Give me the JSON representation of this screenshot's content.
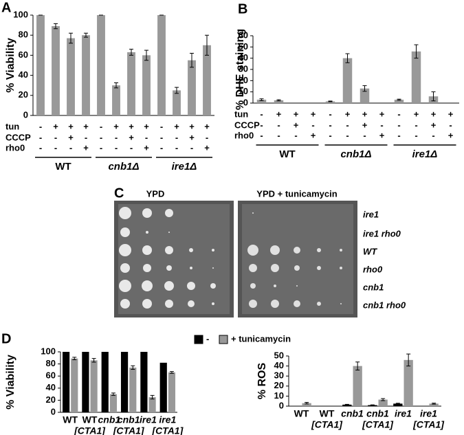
{
  "chart_data": [
    {
      "type": "bar",
      "panel": "A",
      "ylabel": "% Viability",
      "color": "#999999",
      "values": [
        100,
        89,
        77,
        80,
        100,
        30,
        63,
        60,
        100,
        25,
        55,
        70
      ],
      "errors": [
        0,
        2.5,
        5,
        2,
        0,
        2.5,
        3,
        5,
        0,
        3,
        7,
        10
      ],
      "ylim": [
        0,
        100
      ],
      "yticks": [
        0,
        20,
        40,
        60,
        80,
        100
      ],
      "treatments": [
        {
          "name": "tun",
          "signs": [
            "-",
            "+",
            "+",
            "+",
            "-",
            "+",
            "+",
            "+",
            "-",
            "+",
            "+",
            "+"
          ]
        },
        {
          "name": "CCCP",
          "signs": [
            "-",
            "-",
            "+",
            "-",
            "-",
            "-",
            "+",
            "-",
            "-",
            "-",
            "+",
            "-"
          ]
        },
        {
          "name": "rho0",
          "signs": [
            "-",
            "-",
            "-",
            "+",
            "-",
            "-",
            "-",
            "+",
            "-",
            "-",
            "-",
            "+"
          ]
        }
      ],
      "groups": [
        "WT",
        "cnb1Δ",
        "ire1Δ"
      ]
    },
    {
      "type": "bar",
      "panel": "B",
      "ylabel": "% DHE staining",
      "color": "#999999",
      "values": [
        3,
        2.5,
        0,
        0,
        1.5,
        40,
        13,
        0,
        3,
        46,
        6,
        0
      ],
      "errors": [
        0.8,
        0.5,
        0,
        0,
        0.3,
        4,
        2.5,
        0,
        0.5,
        6,
        4,
        0
      ],
      "ylim": [
        0,
        60
      ],
      "yticks": [
        0,
        10,
        20,
        30,
        40,
        50,
        60
      ],
      "treatments": [
        {
          "name": "tun",
          "signs": [
            "-",
            "+",
            "+",
            "+",
            "-",
            "+",
            "+",
            "+",
            "-",
            "+",
            "+",
            "+"
          ]
        },
        {
          "name": "CCCP",
          "signs": [
            "-",
            "-",
            "+",
            "-",
            "-",
            "-",
            "+",
            "-",
            "-",
            "-",
            "+",
            "-"
          ]
        },
        {
          "name": "rho0",
          "signs": [
            "-",
            "-",
            "-",
            "+",
            "-",
            "-",
            "-",
            "+",
            "-",
            "-",
            "-",
            "+"
          ]
        }
      ],
      "groups": [
        "WT",
        "cnb1Δ",
        "ire1Δ"
      ]
    },
    {
      "type": "grouped_bar",
      "panel": "D",
      "ylabel": "% Viability",
      "categories": [
        "WT",
        "WT",
        "cnb1",
        "cnb1",
        "ire1",
        "ire1"
      ],
      "category_sublabels": [
        null,
        "[CTA1]",
        null,
        "[CTA1]",
        null,
        "[CTA1]"
      ],
      "series": [
        {
          "name": "-",
          "color": "#000000",
          "values": [
            100,
            100,
            100,
            100,
            100,
            82
          ],
          "errors": [
            0,
            0,
            0,
            0,
            0,
            0
          ]
        },
        {
          "name": "+ tunicamycin",
          "color": "#999999",
          "values": [
            89,
            86,
            30,
            74,
            25,
            66
          ],
          "errors": [
            2,
            3,
            2,
            3,
            3,
            1.5
          ]
        }
      ],
      "ylim": [
        0,
        100
      ],
      "yticks": [
        0,
        20,
        40,
        60,
        80,
        100
      ]
    },
    {
      "type": "grouped_bar",
      "ylabel": "% ROS",
      "categories": [
        "WT",
        "WT",
        "cnb1",
        "cnb1",
        "ire1",
        "ire1"
      ],
      "category_sublabels": [
        null,
        "[CTA1]",
        null,
        "[CTA1]",
        null,
        "[CTA1]"
      ],
      "series": [
        {
          "name": "-",
          "color": "#000000",
          "values": [
            0,
            0,
            1.5,
            1,
            2.5,
            0
          ],
          "errors": [
            0,
            0,
            0.3,
            0.3,
            0.4,
            0
          ]
        },
        {
          "name": "+ tunicamycin",
          "color": "#999999",
          "values": [
            3,
            0,
            40,
            6.5,
            46,
            2.5
          ],
          "errors": [
            0.8,
            0,
            4,
            1,
            6,
            0.5
          ]
        }
      ],
      "ylim": [
        0,
        50
      ],
      "yticks": [
        0,
        10,
        20,
        30,
        40,
        50
      ]
    }
  ],
  "panel_c": {
    "panel": "C",
    "plates": [
      "YPD",
      "YPD + tunicamycin"
    ],
    "strains": [
      "ire1",
      "ire1 rho0",
      "WT",
      "rho0",
      "cnb1",
      "cnb1 rho0"
    ]
  }
}
